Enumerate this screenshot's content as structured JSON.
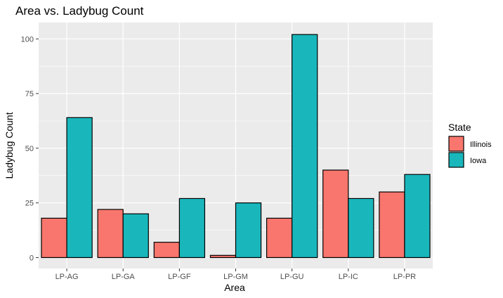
{
  "chart_data": {
    "type": "bar",
    "title": "Area vs. Ladybug Count",
    "xlabel": "Area",
    "ylabel": "Ladybug Count",
    "categories": [
      "LP-AG",
      "LP-GA",
      "LP-GF",
      "LP-GM",
      "LP-GU",
      "LP-IC",
      "LP-PR"
    ],
    "series": [
      {
        "name": "Illinois",
        "color": "#F8766D",
        "values": [
          18,
          22,
          7,
          1,
          18,
          40,
          30
        ]
      },
      {
        "name": "Iowa",
        "color": "#19B7BC",
        "values": [
          64,
          20,
          27,
          25,
          102,
          27,
          38
        ]
      }
    ],
    "ylim": [
      -5,
      107.5
    ],
    "yticks": [
      0,
      25,
      50,
      75,
      100
    ],
    "grid": true,
    "legend": {
      "title": "State",
      "placement": "right"
    },
    "panel_background": "#EBEBEB",
    "grid_color": "#FFFFFF"
  }
}
